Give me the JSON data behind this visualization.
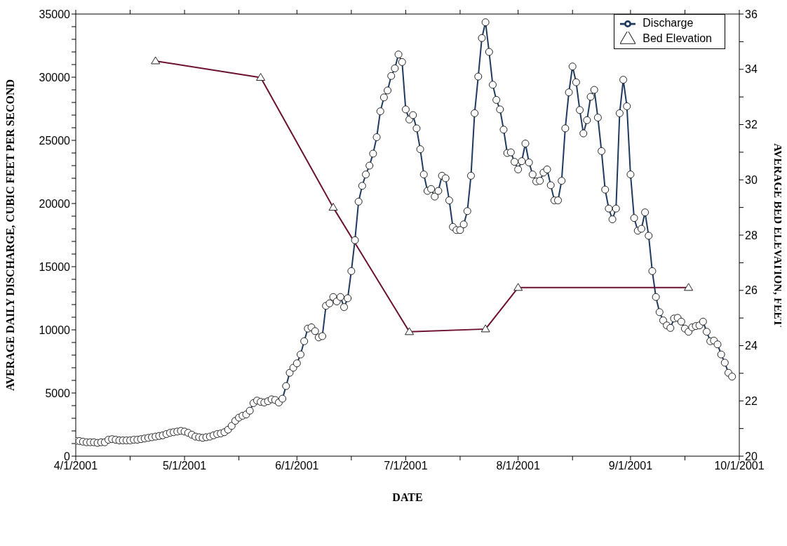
{
  "chart_data": {
    "type": "line",
    "xlabel": "DATE",
    "ylabel": "AVERAGE DAILY DISCHARGE, CUBIC FEET PER SECOND",
    "y2label": "AVERAGE BED ELEVATION, FEET",
    "legend": "top right",
    "xlim": [
      "2001-04-01",
      "2001-10-01"
    ],
    "xticks": [
      {
        "value": "2001-04-01",
        "label": "4/1/2001"
      },
      {
        "value": "2001-04-16",
        "label": null
      },
      {
        "value": "2001-05-01",
        "label": "5/1/2001"
      },
      {
        "value": "2001-05-16",
        "label": null
      },
      {
        "value": "2001-06-01",
        "label": "6/1/2001"
      },
      {
        "value": "2001-06-16",
        "label": null
      },
      {
        "value": "2001-07-01",
        "label": "7/1/2001"
      },
      {
        "value": "2001-07-16",
        "label": null
      },
      {
        "value": "2001-08-01",
        "label": "8/1/2001"
      },
      {
        "value": "2001-08-16",
        "label": null
      },
      {
        "value": "2001-09-01",
        "label": "9/1/2001"
      },
      {
        "value": "2001-09-16",
        "label": null
      },
      {
        "value": "2001-10-01",
        "label": "10/1/2001"
      }
    ],
    "ylim": [
      0,
      35000
    ],
    "yticks": [
      0,
      {
        "value": 1000,
        "label": null
      },
      {
        "value": 2000,
        "label": null
      },
      {
        "value": 3000,
        "label": null
      },
      {
        "value": 4000,
        "label": null
      },
      5000,
      {
        "value": 6000,
        "label": null
      },
      {
        "value": 7000,
        "label": null
      },
      {
        "value": 8000,
        "label": null
      },
      {
        "value": 9000,
        "label": null
      },
      10000,
      {
        "value": 11000,
        "label": null
      },
      {
        "value": 12000,
        "label": null
      },
      {
        "value": 13000,
        "label": null
      },
      {
        "value": 14000,
        "label": null
      },
      15000,
      {
        "value": 16000,
        "label": null
      },
      {
        "value": 17000,
        "label": null
      },
      {
        "value": 18000,
        "label": null
      },
      {
        "value": 19000,
        "label": null
      },
      20000,
      {
        "value": 21000,
        "label": null
      },
      {
        "value": 22000,
        "label": null
      },
      {
        "value": 23000,
        "label": null
      },
      {
        "value": 24000,
        "label": null
      },
      25000,
      {
        "value": 26000,
        "label": null
      },
      {
        "value": 27000,
        "label": null
      },
      {
        "value": 28000,
        "label": null
      },
      {
        "value": 29000,
        "label": null
      },
      30000,
      {
        "value": 31000,
        "label": null
      },
      {
        "value": 32000,
        "label": null
      },
      {
        "value": 33000,
        "label": null
      },
      {
        "value": 34000,
        "label": null
      },
      35000
    ],
    "y2lim": [
      20,
      36
    ],
    "y2ticks": [
      20,
      {
        "value": 21,
        "label": null
      },
      22,
      {
        "value": 23,
        "label": null
      },
      24,
      {
        "value": 25,
        "label": null
      },
      26,
      {
        "value": 27,
        "label": null
      },
      28,
      {
        "value": 29,
        "label": null
      },
      30,
      {
        "value": 31,
        "label": null
      },
      32,
      {
        "value": 33,
        "label": null
      },
      34,
      {
        "value": 35,
        "label": null
      },
      36
    ],
    "series": [
      {
        "name": "Discharge",
        "color": "#1f3a5f",
        "marker": "circle",
        "x": [
          "2001-04-01",
          "2001-04-02",
          "2001-04-03",
          "2001-04-04",
          "2001-04-05",
          "2001-04-06",
          "2001-04-07",
          "2001-04-08",
          "2001-04-09",
          "2001-04-10",
          "2001-04-11",
          "2001-04-12",
          "2001-04-13",
          "2001-04-14",
          "2001-04-15",
          "2001-04-16",
          "2001-04-17",
          "2001-04-18",
          "2001-04-19",
          "2001-04-20",
          "2001-04-21",
          "2001-04-22",
          "2001-04-23",
          "2001-04-24",
          "2001-04-25",
          "2001-04-26",
          "2001-04-27",
          "2001-04-28",
          "2001-04-29",
          "2001-04-30",
          "2001-05-01",
          "2001-05-02",
          "2001-05-03",
          "2001-05-04",
          "2001-05-05",
          "2001-05-06",
          "2001-05-07",
          "2001-05-08",
          "2001-05-09",
          "2001-05-10",
          "2001-05-11",
          "2001-05-12",
          "2001-05-13",
          "2001-05-14",
          "2001-05-15",
          "2001-05-16",
          "2001-05-17",
          "2001-05-18",
          "2001-05-19",
          "2001-05-20",
          "2001-05-21",
          "2001-05-22",
          "2001-05-23",
          "2001-05-24",
          "2001-05-25",
          "2001-05-26",
          "2001-05-27",
          "2001-05-28",
          "2001-05-29",
          "2001-05-30",
          "2001-05-31",
          "2001-06-01",
          "2001-06-02",
          "2001-06-03",
          "2001-06-04",
          "2001-06-05",
          "2001-06-06",
          "2001-06-07",
          "2001-06-08",
          "2001-06-09",
          "2001-06-10",
          "2001-06-11",
          "2001-06-12",
          "2001-06-13",
          "2001-06-14",
          "2001-06-15",
          "2001-06-16",
          "2001-06-17",
          "2001-06-18",
          "2001-06-19",
          "2001-06-20",
          "2001-06-21",
          "2001-06-22",
          "2001-06-23",
          "2001-06-24",
          "2001-06-25",
          "2001-06-26",
          "2001-06-27",
          "2001-06-28",
          "2001-06-29",
          "2001-06-30",
          "2001-07-01",
          "2001-07-02",
          "2001-07-03",
          "2001-07-04",
          "2001-07-05",
          "2001-07-06",
          "2001-07-07",
          "2001-07-08",
          "2001-07-09",
          "2001-07-10",
          "2001-07-11",
          "2001-07-12",
          "2001-07-13",
          "2001-07-14",
          "2001-07-15",
          "2001-07-16",
          "2001-07-17",
          "2001-07-18",
          "2001-07-19",
          "2001-07-20",
          "2001-07-21",
          "2001-07-22",
          "2001-07-23",
          "2001-07-24",
          "2001-07-25",
          "2001-07-26",
          "2001-07-27",
          "2001-07-28",
          "2001-07-29",
          "2001-07-30",
          "2001-07-31",
          "2001-08-01",
          "2001-08-02",
          "2001-08-03",
          "2001-08-04",
          "2001-08-05",
          "2001-08-06",
          "2001-08-07",
          "2001-08-08",
          "2001-08-09",
          "2001-08-10",
          "2001-08-11",
          "2001-08-12",
          "2001-08-13",
          "2001-08-14",
          "2001-08-15",
          "2001-08-16",
          "2001-08-17",
          "2001-08-18",
          "2001-08-19",
          "2001-08-20",
          "2001-08-21",
          "2001-08-22",
          "2001-08-23",
          "2001-08-24",
          "2001-08-25",
          "2001-08-26",
          "2001-08-27",
          "2001-08-28",
          "2001-08-29",
          "2001-08-30",
          "2001-08-31",
          "2001-09-01",
          "2001-09-02",
          "2001-09-03",
          "2001-09-04",
          "2001-09-05",
          "2001-09-06",
          "2001-09-07",
          "2001-09-08",
          "2001-09-09",
          "2001-09-10",
          "2001-09-11",
          "2001-09-12",
          "2001-09-13",
          "2001-09-14",
          "2001-09-15",
          "2001-09-16",
          "2001-09-17",
          "2001-09-18",
          "2001-09-19",
          "2001-09-20",
          "2001-09-21",
          "2001-09-22",
          "2001-09-23",
          "2001-09-24",
          "2001-09-25",
          "2001-09-26",
          "2001-09-27",
          "2001-09-28",
          "2001-09-29"
        ],
        "values": [
          1200,
          1200,
          1150,
          1100,
          1100,
          1100,
          1050,
          1100,
          1100,
          1300,
          1350,
          1300,
          1250,
          1250,
          1250,
          1250,
          1300,
          1300,
          1350,
          1400,
          1450,
          1500,
          1550,
          1600,
          1650,
          1750,
          1850,
          1900,
          1950,
          2000,
          1950,
          1850,
          1700,
          1550,
          1500,
          1450,
          1500,
          1550,
          1650,
          1750,
          1800,
          1900,
          2100,
          2400,
          2800,
          3050,
          3200,
          3300,
          3600,
          4200,
          4400,
          4300,
          4250,
          4350,
          4500,
          4450,
          4250,
          4550,
          5550,
          6600,
          7000,
          7350,
          8050,
          9100,
          10100,
          10200,
          9900,
          9400,
          9500,
          11900,
          12100,
          12600,
          12250,
          12600,
          11800,
          12500,
          14650,
          17100,
          20150,
          21400,
          22300,
          23000,
          23950,
          25250,
          27300,
          28400,
          28950,
          30100,
          30700,
          31800,
          31200,
          27450,
          26650,
          27000,
          25950,
          24300,
          22300,
          21000,
          21150,
          20550,
          21000,
          22200,
          22000,
          20250,
          18150,
          17900,
          17900,
          18350,
          19400,
          22200,
          27150,
          30050,
          33100,
          34350,
          32000,
          29400,
          28200,
          27450,
          25850,
          24000,
          24050,
          23300,
          22700,
          23350,
          24750,
          23250,
          22300,
          21750,
          21800,
          22450,
          22700,
          21450,
          20250,
          20250,
          21800,
          25950,
          28800,
          30850,
          29600,
          27400,
          25550,
          26600,
          28450,
          29000,
          26800,
          24150,
          21100,
          19600,
          18750,
          19600,
          27150,
          29800,
          27700,
          22300,
          18850,
          17850,
          18000,
          19300,
          17450,
          14650,
          12600,
          11400,
          10750,
          10350,
          10150,
          10900,
          10950,
          10650,
          10100,
          9850,
          10200,
          10300,
          10350,
          10650,
          9850,
          9100,
          9150,
          8850,
          8050,
          7400,
          6600,
          6300
        ]
      },
      {
        "name": "Bed Elevation",
        "color": "#6b1030",
        "marker": "triangle",
        "axis": "y2",
        "x": [
          "2001-04-23",
          "2001-05-22",
          "2001-06-11",
          "2001-07-02",
          "2001-07-23",
          "2001-08-01",
          "2001-09-17"
        ],
        "values": [
          34.3,
          33.7,
          29.0,
          24.5,
          24.6,
          26.1,
          26.1
        ]
      }
    ]
  }
}
